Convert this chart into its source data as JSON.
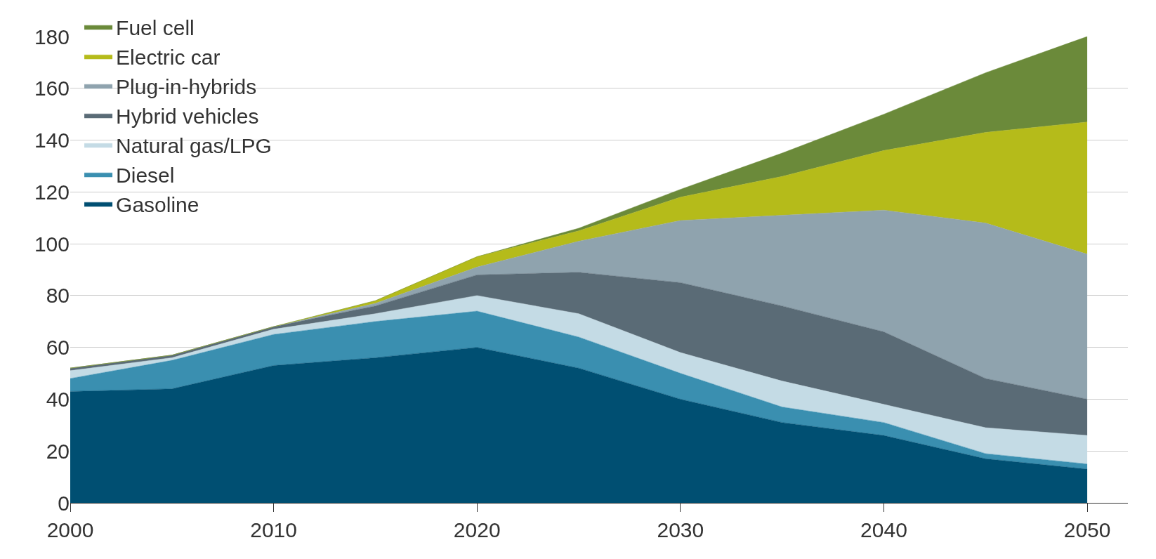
{
  "chart_data": {
    "type": "area",
    "stacked": true,
    "x": [
      2000,
      2005,
      2010,
      2015,
      2020,
      2025,
      2030,
      2035,
      2040,
      2045,
      2050
    ],
    "series": [
      {
        "name": "Gasoline",
        "color": "#004f72",
        "values": [
          43,
          44,
          53,
          56,
          60,
          52,
          40,
          31,
          26,
          17,
          13
        ]
      },
      {
        "name": "Diesel",
        "color": "#3a8fb0",
        "values": [
          5,
          11,
          12,
          14,
          14,
          12,
          10,
          6,
          5,
          2,
          2
        ]
      },
      {
        "name": "Natural gas/LPG",
        "color": "#c4dbe5",
        "values": [
          3,
          1,
          2,
          3,
          6,
          9,
          8,
          10,
          7,
          10,
          11
        ]
      },
      {
        "name": "Hybrid vehicles",
        "color": "#5a6b76",
        "values": [
          1,
          1,
          1,
          3,
          8,
          16,
          27,
          29,
          28,
          19,
          14
        ]
      },
      {
        "name": "Plug-in-hybrids",
        "color": "#8fa3ae",
        "values": [
          0,
          0,
          0,
          1,
          3,
          12,
          24,
          35,
          47,
          60,
          56
        ]
      },
      {
        "name": "Electric car",
        "color": "#b5bb1a",
        "values": [
          0,
          0,
          0,
          1,
          4,
          4,
          9,
          15,
          23,
          35,
          51
        ]
      },
      {
        "name": "Fuel cell",
        "color": "#6b8a3a",
        "values": [
          0,
          0,
          0,
          0,
          0,
          1,
          3,
          9,
          14,
          23,
          33
        ]
      }
    ],
    "xlim": [
      2000,
      2052
    ],
    "xticks": [
      2000,
      2010,
      2020,
      2030,
      2040,
      2050
    ],
    "ylim": [
      0,
      180
    ],
    "yticks": [
      0,
      20,
      40,
      60,
      80,
      100,
      120,
      140,
      160,
      180
    ],
    "grid": "y",
    "legend": "top left"
  }
}
